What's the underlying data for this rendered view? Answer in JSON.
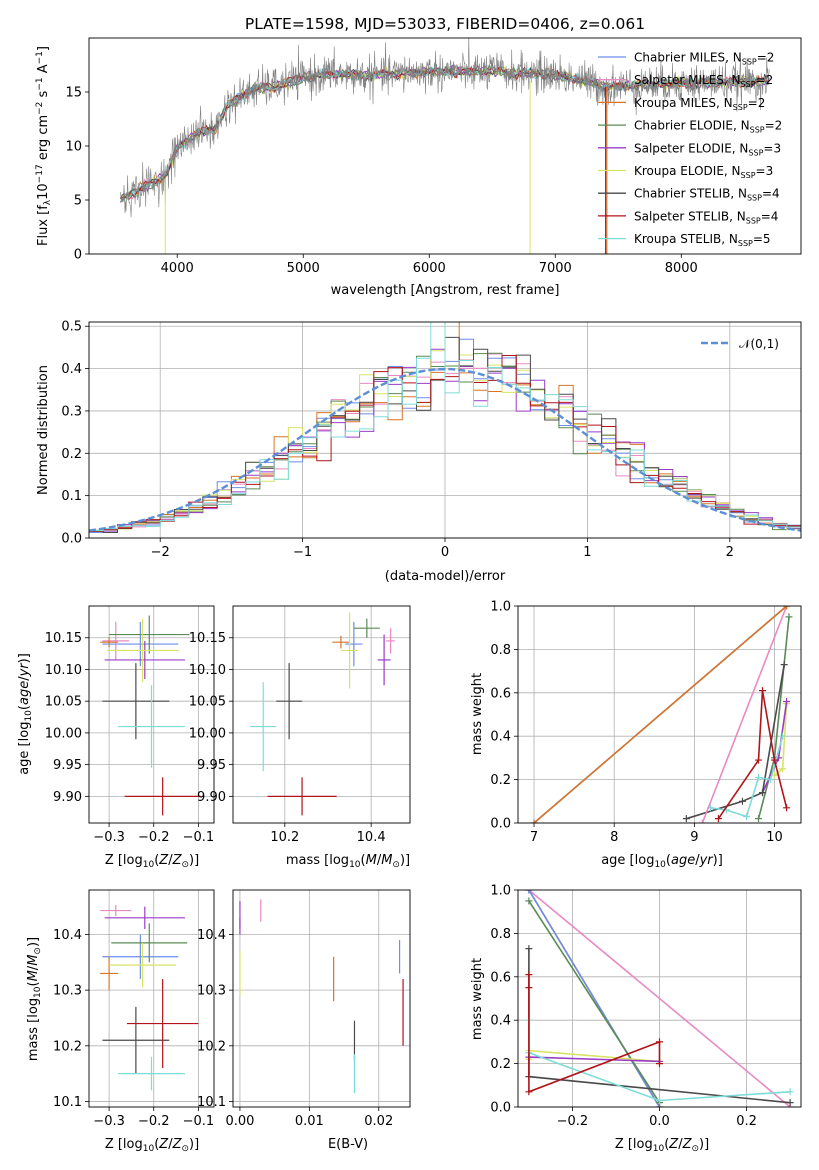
{
  "figure_title": "PLATE=1598, MJD=53033, FIBERID=0406, z=0.061",
  "series_colors": {
    "Chabrier MILES": "#6c8ee8",
    "Salpeter MILES": "#e98ac4",
    "Kroupa MILES": "#d87527",
    "Chabrier ELODIE": "#5a8a55",
    "Salpeter ELODIE": "#9b3cc6",
    "Kroupa ELODIE": "#d8e366",
    "Chabrier STELIB": "#4a4a4a",
    "Salpeter STELIB": "#b0141a",
    "Kroupa STELIB": "#7edcd8"
  },
  "chart_data": [
    {
      "id": "spectrum",
      "type": "line",
      "xlabel": "wavelength [Angstrom, rest frame]",
      "ylabel": "Flux [f_λ 10^-17 erg cm^-2 s^-1 A^-1]",
      "xlim": [
        3300,
        8950
      ],
      "ylim": [
        0,
        20
      ],
      "xticks": [
        4000,
        5000,
        6000,
        7000,
        8000
      ],
      "yticks": [
        0,
        5,
        10,
        15
      ],
      "grid": false,
      "legend_position": "right",
      "data_color": "#808080",
      "spectrum_shape": {
        "x": [
          3550,
          3700,
          3850,
          3920,
          4000,
          4150,
          4300,
          4400,
          4600,
          4800,
          5000,
          5200,
          5500,
          6000,
          6500,
          6800,
          7000,
          7200,
          7400,
          7600,
          8000,
          8400,
          8700
        ],
        "y": [
          5.0,
          6.0,
          6.8,
          7.5,
          9.8,
          11.2,
          11.5,
          13.8,
          15.2,
          15.6,
          16.3,
          16.7,
          16.5,
          16.9,
          16.9,
          16.7,
          16.6,
          16.1,
          15.5,
          15.6,
          15.8,
          15.9,
          16.0
        ]
      },
      "legend": [
        {
          "label": "Chabrier MILES",
          "nssp": "2"
        },
        {
          "label": "Salpeter MILES",
          "nssp": "2"
        },
        {
          "label": "Kroupa MILES",
          "nssp": "2"
        },
        {
          "label": "Chabrier ELODIE",
          "nssp": "2"
        },
        {
          "label": "Salpeter ELODIE",
          "nssp": "3"
        },
        {
          "label": "Kroupa ELODIE",
          "nssp": "3"
        },
        {
          "label": "Chabrier STELIB",
          "nssp": "4"
        },
        {
          "label": "Salpeter STELIB",
          "nssp": "4"
        },
        {
          "label": "Kroupa STELIB",
          "nssp": "5"
        }
      ]
    },
    {
      "id": "residuals",
      "type": "line",
      "xlabel": "(data-model)/error",
      "ylabel": "Normed distribution",
      "xlim": [
        -2.5,
        2.5
      ],
      "ylim": [
        0,
        0.51
      ],
      "xticks": [
        -2,
        -1,
        0,
        1,
        2
      ],
      "yticks": [
        0.0,
        0.1,
        0.2,
        0.3,
        0.4,
        0.5
      ],
      "grid": true,
      "legend_position": "top-right",
      "gaussian": {
        "label": "𝒩(0,1)",
        "mean": 0,
        "sigma": 1,
        "color": "#5b8fd6"
      },
      "histogram_bin_width": 0.1
    },
    {
      "id": "age-vs-Z",
      "type": "scatter",
      "xlabel": "Z [log10(Z/Z⊙)]",
      "ylabel": "age [log10(age/yr)]",
      "xlim": [
        -0.345,
        -0.065
      ],
      "ylim": [
        9.858,
        10.2
      ],
      "xticks": [
        -0.3,
        -0.2,
        -0.1
      ],
      "yticks": [
        9.9,
        9.95,
        10.0,
        10.05,
        10.1,
        10.15
      ],
      "grid": true,
      "points": [
        {
          "series": "Chabrier MILES",
          "x": -0.23,
          "y": 10.14,
          "x_err": 0.085,
          "y_err": 0.035
        },
        {
          "series": "Salpeter MILES",
          "x": -0.285,
          "y": 10.145,
          "x_err": 0.03,
          "y_err": 0.03
        },
        {
          "series": "Kroupa MILES",
          "x": -0.3,
          "y": 10.143,
          "x_err": 0.02,
          "y_err": 0.008
        },
        {
          "series": "Chabrier ELODIE",
          "x": -0.21,
          "y": 10.155,
          "x_err": 0.09,
          "y_err": 0.03
        },
        {
          "series": "Salpeter ELODIE",
          "x": -0.22,
          "y": 10.115,
          "x_err": 0.09,
          "y_err": 0.03
        },
        {
          "series": "Kroupa ELODIE",
          "x": -0.225,
          "y": 10.13,
          "x_err": 0.08,
          "y_err": 0.05
        },
        {
          "series": "Chabrier STELIB",
          "x": -0.24,
          "y": 10.05,
          "x_err": 0.075,
          "y_err": 0.06
        },
        {
          "series": "Salpeter STELIB",
          "x": -0.18,
          "y": 9.9,
          "x_err": 0.085,
          "y_err": 0.03
        },
        {
          "series": "Kroupa STELIB",
          "x": -0.205,
          "y": 10.01,
          "x_err": 0.075,
          "y_err": 0.065
        }
      ]
    },
    {
      "id": "age-vs-mass",
      "type": "scatter",
      "xlabel": "mass [log10(M/M⊙)]",
      "ylabel": "",
      "xlim": [
        10.08,
        10.49
      ],
      "ylim": [
        9.858,
        10.2
      ],
      "xticks": [
        10.2,
        10.4
      ],
      "yticks": [
        9.9,
        9.95,
        10.0,
        10.05,
        10.1,
        10.15
      ],
      "grid": true,
      "points": [
        {
          "series": "Chabrier MILES",
          "x": 10.36,
          "y": 10.14,
          "x_err": 0.02,
          "y_err": 0.035
        },
        {
          "series": "Salpeter MILES",
          "x": 10.445,
          "y": 10.145,
          "x_err": 0.01,
          "y_err": 0.02
        },
        {
          "series": "Kroupa MILES",
          "x": 10.33,
          "y": 10.143,
          "x_err": 0.02,
          "y_err": 0.01
        },
        {
          "series": "Chabrier ELODIE",
          "x": 10.39,
          "y": 10.165,
          "x_err": 0.03,
          "y_err": 0.015
        },
        {
          "series": "Salpeter ELODIE",
          "x": 10.43,
          "y": 10.115,
          "x_err": 0.015,
          "y_err": 0.04
        },
        {
          "series": "Kroupa ELODIE",
          "x": 10.35,
          "y": 10.13,
          "x_err": 0.02,
          "y_err": 0.06
        },
        {
          "series": "Chabrier STELIB",
          "x": 10.21,
          "y": 10.05,
          "x_err": 0.03,
          "y_err": 0.06
        },
        {
          "series": "Salpeter STELIB",
          "x": 10.24,
          "y": 9.9,
          "x_err": 0.08,
          "y_err": 0.03
        },
        {
          "series": "Kroupa STELIB",
          "x": 10.15,
          "y": 10.01,
          "x_err": 0.03,
          "y_err": 0.07
        }
      ]
    },
    {
      "id": "mass-weight-vs-age",
      "type": "line",
      "xlabel": "age [log10(age/yr)]",
      "ylabel": "mass weight",
      "xlim": [
        6.8,
        10.33
      ],
      "ylim": [
        0,
        1.0
      ],
      "xticks": [
        7,
        8,
        9,
        10
      ],
      "yticks": [
        0.0,
        0.2,
        0.4,
        0.6,
        0.8,
        1.0
      ],
      "grid": true,
      "series": [
        {
          "name": "Kroupa ELODIE",
          "x": [
            10.0,
            10.1,
            10.15
          ],
          "y": [
            0.22,
            0.25,
            0.55
          ]
        },
        {
          "name": "Chabrier ELODIE",
          "x": [
            9.8,
            10.0,
            10.18
          ],
          "y": [
            0.02,
            0.3,
            0.95
          ]
        },
        {
          "name": "Salpeter ELODIE",
          "x": [
            9.85,
            10.05,
            10.15
          ],
          "y": [
            0.14,
            0.3,
            0.56
          ]
        },
        {
          "name": "Chabrier STELIB",
          "x": [
            8.9,
            9.6,
            9.85,
            10.12
          ],
          "y": [
            0.02,
            0.1,
            0.14,
            0.73
          ]
        },
        {
          "name": "Kroupa STELIB",
          "x": [
            9.2,
            9.4,
            9.65,
            9.8,
            9.95,
            10.1
          ],
          "y": [
            0.07,
            0.06,
            0.03,
            0.21,
            0.2,
            0.4
          ]
        },
        {
          "name": "Salpeter STELIB",
          "x": [
            9.3,
            9.8,
            9.85,
            10.0,
            10.15
          ],
          "y": [
            0.02,
            0.29,
            0.61,
            0.29,
            0.07
          ]
        },
        {
          "name": "Salpeter MILES",
          "x": [
            9.1,
            10.15
          ],
          "y": [
            0.0,
            1.0
          ]
        },
        {
          "name": "Chabrier MILES",
          "x": [
            7.0,
            10.15
          ],
          "y": [
            0.0,
            1.0
          ]
        },
        {
          "name": "Kroupa MILES",
          "x": [
            7.0,
            10.15
          ],
          "y": [
            0.0,
            1.0
          ]
        }
      ]
    },
    {
      "id": "mass-vs-Z",
      "type": "scatter",
      "xlabel": "Z [log10(Z/Z⊙)]",
      "ylabel": "mass [log10(M/M⊙)]",
      "xlim": [
        -0.345,
        -0.065
      ],
      "ylim": [
        10.09,
        10.48
      ],
      "xticks": [
        -0.3,
        -0.2,
        -0.1
      ],
      "yticks": [
        10.1,
        10.2,
        10.3,
        10.4
      ],
      "grid": true,
      "points": [
        {
          "series": "Chabrier MILES",
          "x": -0.23,
          "y": 10.36,
          "x_err": 0.085,
          "y_err": 0.04
        },
        {
          "series": "Salpeter MILES",
          "x": -0.285,
          "y": 10.443,
          "x_err": 0.035,
          "y_err": 0.01
        },
        {
          "series": "Kroupa MILES",
          "x": -0.3,
          "y": 10.33,
          "x_err": 0.02,
          "y_err": 0.03
        },
        {
          "series": "Chabrier ELODIE",
          "x": -0.21,
          "y": 10.385,
          "x_err": 0.085,
          "y_err": 0.035
        },
        {
          "series": "Salpeter ELODIE",
          "x": -0.22,
          "y": 10.43,
          "x_err": 0.09,
          "y_err": 0.02
        },
        {
          "series": "Kroupa ELODIE",
          "x": -0.225,
          "y": 10.345,
          "x_err": 0.075,
          "y_err": 0.04
        },
        {
          "series": "Chabrier STELIB",
          "x": -0.24,
          "y": 10.21,
          "x_err": 0.075,
          "y_err": 0.06
        },
        {
          "series": "Salpeter STELIB",
          "x": -0.18,
          "y": 10.24,
          "x_err": 0.08,
          "y_err": 0.08
        },
        {
          "series": "Kroupa STELIB",
          "x": -0.205,
          "y": 10.15,
          "x_err": 0.075,
          "y_err": 0.03
        }
      ]
    },
    {
      "id": "mass-vs-EBV",
      "type": "scatter",
      "xlabel": "E(B-V)",
      "ylabel": "",
      "xlim": [
        -0.001,
        0.0245
      ],
      "ylim": [
        10.09,
        10.48
      ],
      "xticks": [
        0.0,
        0.01,
        0.02
      ],
      "yticks": [
        10.1,
        10.2,
        10.3,
        10.4
      ],
      "grid": true,
      "points": [
        {
          "series": "Chabrier MILES",
          "x": 0.023,
          "y": 10.36,
          "x_err": 0,
          "y_err": 0.03
        },
        {
          "series": "Salpeter MILES",
          "x": 0.003,
          "y": 10.443,
          "x_err": 0,
          "y_err": 0.02
        },
        {
          "series": "Kroupa MILES",
          "x": 0.0135,
          "y": 10.32,
          "x_err": 0,
          "y_err": 0.04
        },
        {
          "series": "Chabrier ELODIE",
          "x": 0.0,
          "y": 10.42,
          "x_err": 0,
          "y_err": 0.01
        },
        {
          "series": "Salpeter ELODIE",
          "x": 0.0,
          "y": 10.43,
          "x_err": 0,
          "y_err": 0.03
        },
        {
          "series": "Kroupa ELODIE",
          "x": 0.0,
          "y": 10.33,
          "x_err": 0,
          "y_err": 0.04
        },
        {
          "series": "Chabrier STELIB",
          "x": 0.0165,
          "y": 10.21,
          "x_err": 0,
          "y_err": 0.035
        },
        {
          "series": "Salpeter STELIB",
          "x": 0.0235,
          "y": 10.26,
          "x_err": 0,
          "y_err": 0.06
        },
        {
          "series": "Kroupa STELIB",
          "x": 0.0165,
          "y": 10.15,
          "x_err": 0,
          "y_err": 0.035
        }
      ]
    },
    {
      "id": "mass-weight-vs-Z",
      "type": "line",
      "xlabel": "Z [log10(Z/Z⊙)]",
      "ylabel": "mass weight",
      "xlim": [
        -0.325,
        0.325
      ],
      "ylim": [
        0,
        1.0
      ],
      "xticks": [
        -0.2,
        0.0,
        0.2
      ],
      "yticks": [
        0.0,
        0.2,
        0.4,
        0.6,
        0.8,
        1.0
      ],
      "grid": true,
      "series": [
        {
          "name": "Salpeter MILES",
          "x": [
            -0.3,
            0.3
          ],
          "y": [
            1.0,
            0.0
          ]
        },
        {
          "name": "Kroupa MILES",
          "x": [
            -0.3,
            0.0
          ],
          "y": [
            1.0,
            0.0
          ]
        },
        {
          "name": "Chabrier MILES",
          "x": [
            -0.3,
            0.0
          ],
          "y": [
            1.0,
            0.0
          ]
        },
        {
          "name": "Chabrier ELODIE",
          "x": [
            -0.3,
            0.0
          ],
          "y": [
            0.95,
            0.02
          ]
        },
        {
          "name": "Kroupa ELODIE",
          "x": [
            -0.3,
            -0.3,
            0.0
          ],
          "y": [
            0.22,
            0.26,
            0.21
          ]
        },
        {
          "name": "Salpeter ELODIE",
          "x": [
            -0.3,
            0.0
          ],
          "y": [
            0.23,
            0.21
          ]
        },
        {
          "name": "Chabrier STELIB",
          "x": [
            -0.3,
            -0.3,
            0.3
          ],
          "y": [
            0.73,
            0.14,
            0.02
          ]
        },
        {
          "name": "Kroupa STELIB",
          "x": [
            -0.3,
            -0.3,
            0.0,
            0.3
          ],
          "y": [
            0.4,
            0.25,
            0.03,
            0.07
          ]
        },
        {
          "name": "Salpeter STELIB",
          "x": [
            -0.3,
            -0.3,
            -0.3,
            0.0,
            0.0
          ],
          "y": [
            0.61,
            0.55,
            0.07,
            0.3,
            0.2
          ]
        }
      ]
    }
  ]
}
